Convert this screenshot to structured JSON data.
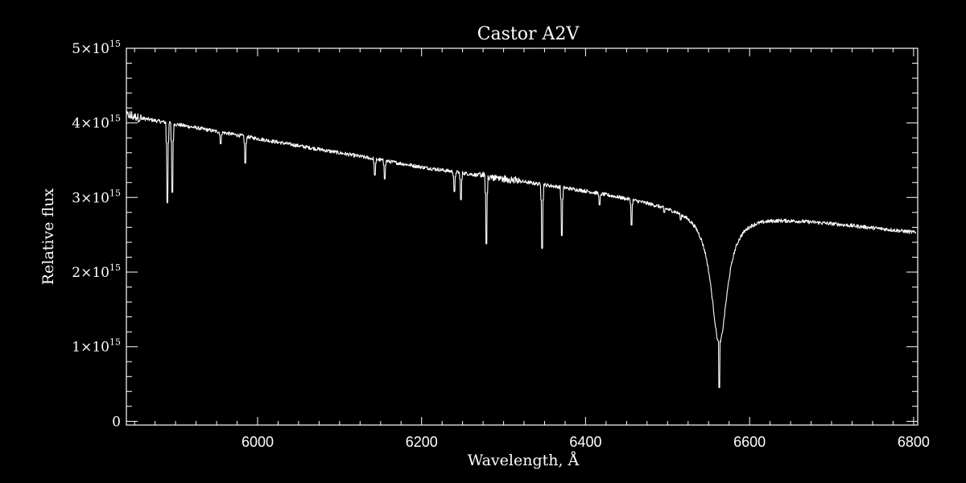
{
  "chart_data": {
    "type": "line",
    "title": "Castor  A2V",
    "xlabel": "Wavelength, Å",
    "ylabel": "Relative flux",
    "xlim": [
      5840,
      6805
    ],
    "ylim": [
      -50000000000000.0,
      5000000000000000.0
    ],
    "grid": false,
    "x_ticks": [
      {
        "value": 6000,
        "label": "6000"
      },
      {
        "value": 6200,
        "label": "6200"
      },
      {
        "value": 6400,
        "label": "6400"
      },
      {
        "value": 6600,
        "label": "6600"
      },
      {
        "value": 6800,
        "label": "6800"
      }
    ],
    "y_ticks": [
      {
        "value": 0,
        "mantissa": "0",
        "base": "",
        "exponent": ""
      },
      {
        "value": 1000000000000000.0,
        "mantissa": "1",
        "base": "×10",
        "exponent": "15"
      },
      {
        "value": 2000000000000000.0,
        "mantissa": "2",
        "base": "×10",
        "exponent": "15"
      },
      {
        "value": 3000000000000000.0,
        "mantissa": "3",
        "base": "×10",
        "exponent": "15"
      },
      {
        "value": 4000000000000000.0,
        "mantissa": "4",
        "base": "×10",
        "exponent": "15"
      },
      {
        "value": 5000000000000000.0,
        "mantissa": "5",
        "base": "×10",
        "exponent": "15"
      }
    ],
    "series": [
      {
        "name": "",
        "color": "#ffffff",
        "continuum": [
          [
            5840,
            4100000000000000.0
          ],
          [
            6000,
            3790000000000000.0
          ],
          [
            6200,
            3410000000000000.0
          ],
          [
            6400,
            3100000000000000.0
          ],
          [
            6500,
            2920000000000000.0
          ],
          [
            6800,
            2540000000000000.0
          ]
        ],
        "h_alpha": {
          "center": 6563,
          "depth": 2400000000000000.0,
          "width": 12
        },
        "absorption_lines": [
          {
            "wavelength": 5890,
            "flux": 2930000000000000.0
          },
          {
            "wavelength": 5896,
            "flux": 3070000000000000.0
          },
          {
            "wavelength": 5955,
            "flux": 3720000000000000.0
          },
          {
            "wavelength": 5985,
            "flux": 3460000000000000.0
          },
          {
            "wavelength": 6143,
            "flux": 3300000000000000.0
          },
          {
            "wavelength": 6155,
            "flux": 3250000000000000.0
          },
          {
            "wavelength": 6240,
            "flux": 3080000000000000.0
          },
          {
            "wavelength": 6248,
            "flux": 2970000000000000.0
          },
          {
            "wavelength": 6279,
            "flux": 2380000000000000.0
          },
          {
            "wavelength": 6347,
            "flux": 2320000000000000.0
          },
          {
            "wavelength": 6371,
            "flux": 2490000000000000.0
          },
          {
            "wavelength": 6417,
            "flux": 2900000000000000.0
          },
          {
            "wavelength": 6456,
            "flux": 2630000000000000.0
          },
          {
            "wavelength": 6496,
            "flux": 2800000000000000.0
          },
          {
            "wavelength": 6516,
            "flux": 2700000000000000.0
          }
        ]
      }
    ]
  }
}
